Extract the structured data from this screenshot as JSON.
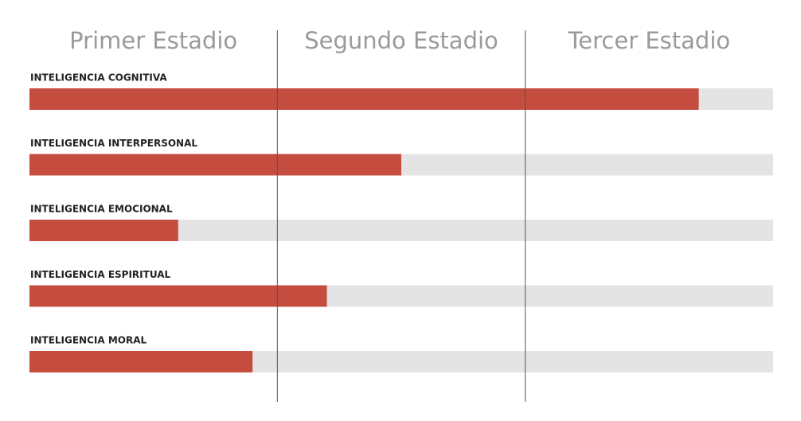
{
  "chart_data": {
    "type": "bar",
    "orientation": "horizontal",
    "stages": [
      "Primer Estadio",
      "Segundo Estadio",
      "Tercer Estadio"
    ],
    "categories": [
      "INTELIGENCIA COGNITIVA",
      "INTELIGENCIA INTERPERSONAL",
      "INTELIGENCIA EMOCIONAL",
      "INTELIGENCIA ESPIRITUAL",
      "INTELIGENCIA MORAL"
    ],
    "values": [
      2.7,
      1.5,
      0.6,
      1.2,
      0.9
    ],
    "xlim": [
      0,
      3
    ],
    "color": "#c44d3f",
    "track_color": "#e4e4e4"
  }
}
